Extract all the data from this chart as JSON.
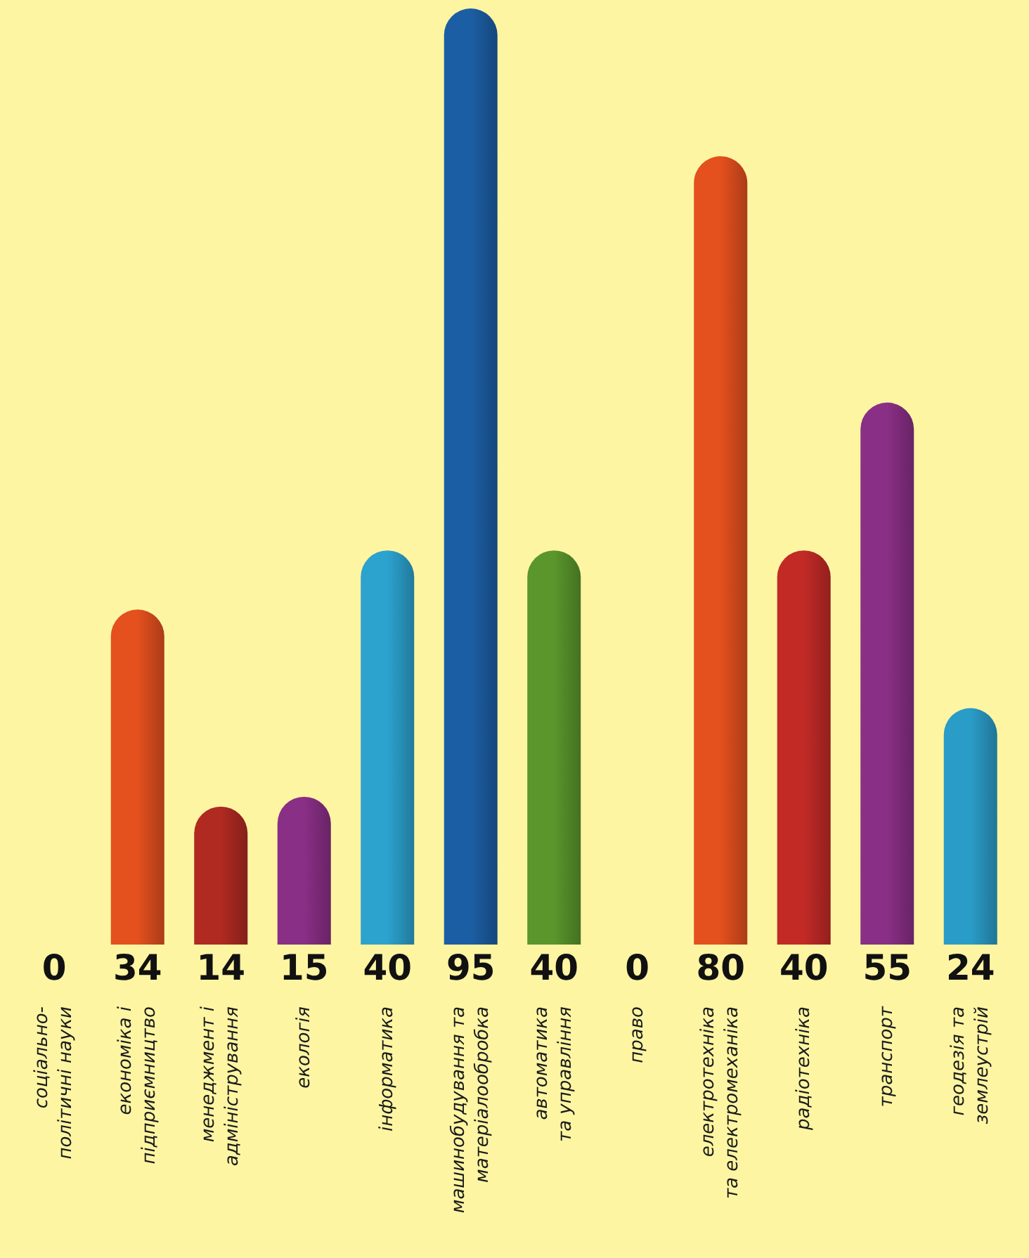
{
  "chart_data": {
    "type": "bar",
    "categories": [
      "соціально-\nполітичні науки",
      "економіка і\nпідприємництво",
      "менеджмент і\nадміністрування",
      "екологія",
      "інформатика",
      "машинобудування та\nматеріалообробка",
      "автоматика\nта управління",
      "право",
      "електротехніка\nта електромеханіка",
      "радіотехніка",
      "транспорт",
      "геодезія та\nземлеустрій"
    ],
    "values": [
      0,
      34,
      14,
      15,
      40,
      95,
      40,
      0,
      80,
      40,
      55,
      24
    ],
    "colors": [
      "#f5a800",
      "#e4501e",
      "#b02a22",
      "#8a2f86",
      "#2ca2cf",
      "#1c5ea4",
      "#5a962c",
      "#8cc022",
      "#e4501e",
      "#c22a26",
      "#8a2f86",
      "#2a9cc8"
    ],
    "data_labels": true
  }
}
